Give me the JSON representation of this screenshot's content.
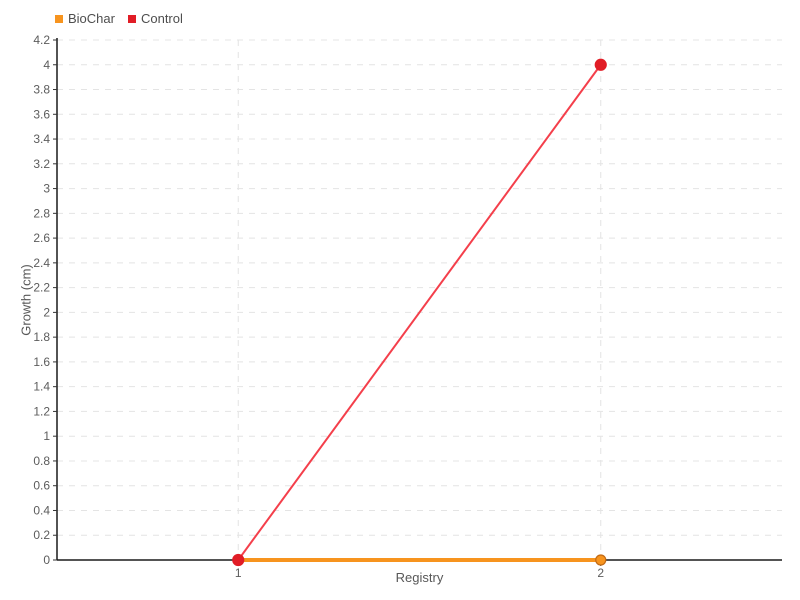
{
  "chart_data": {
    "type": "line",
    "x": [
      1,
      2
    ],
    "x_tick_labels": [
      "1",
      "2"
    ],
    "series": [
      {
        "name": "BioChar",
        "values": [
          0,
          0
        ],
        "color": "#f7941e",
        "line_width": 4,
        "marker": {
          "radius": 5,
          "fill": "#f7941e",
          "stroke": "#c26a15"
        }
      },
      {
        "name": "Control",
        "values": [
          0,
          4
        ],
        "color": "#f43f4b",
        "line_width": 2,
        "marker": {
          "radius": 5.5,
          "fill": "#e11d26",
          "stroke": "#e11d26"
        }
      }
    ],
    "xlabel": "Registry",
    "ylabel": "Growth (cm)",
    "xlim": [
      0.5,
      2.5
    ],
    "ylim": [
      0,
      4.2
    ],
    "y_tick_labels": [
      "0",
      "0.2",
      "0.4",
      "0.6",
      "0.8",
      "1",
      "1.2",
      "1.4",
      "1.6",
      "1.8",
      "2",
      "2.2",
      "2.4",
      "2.6",
      "2.8",
      "3",
      "3.2",
      "3.4",
      "3.6",
      "3.8",
      "4",
      "4.2"
    ],
    "grid": {
      "style": "dashed",
      "color": "#e4e4e4"
    },
    "axis_color": "#1a1a1a",
    "text_color": "#5c5c5c",
    "legend_position": "top-left",
    "background": "#ffffff"
  }
}
